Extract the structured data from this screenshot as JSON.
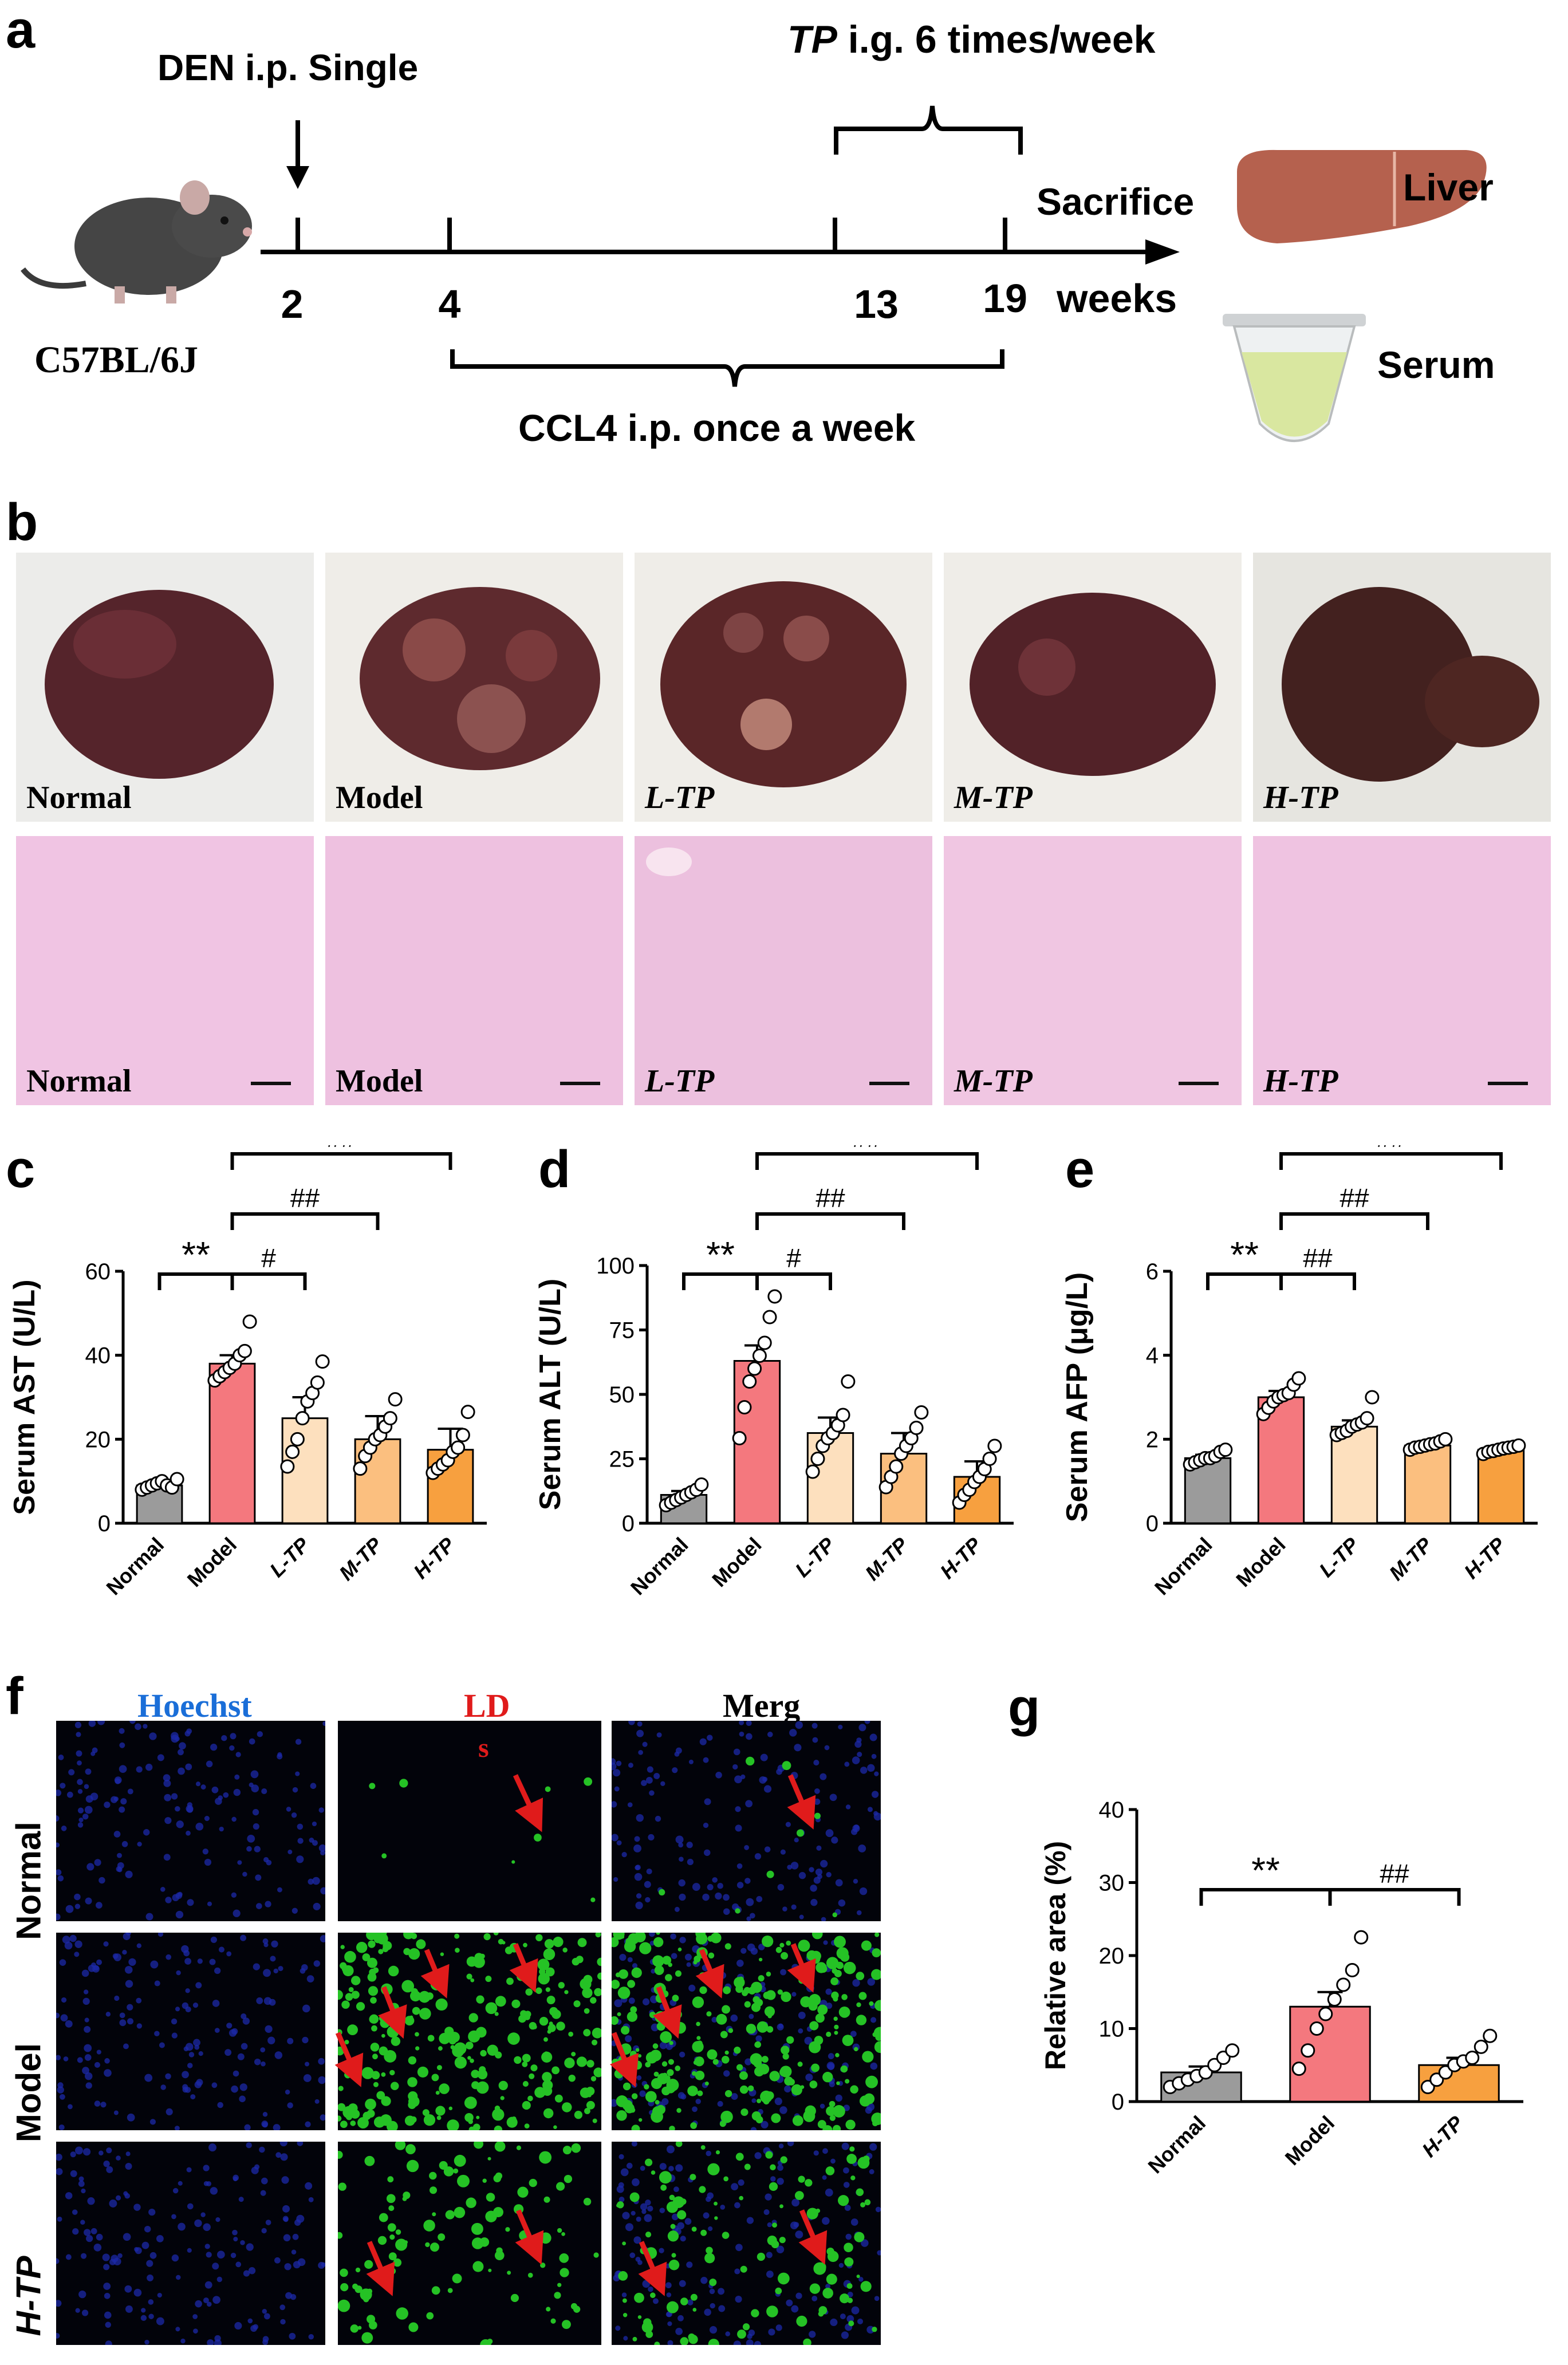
{
  "panels": {
    "a": "a",
    "b": "b",
    "c": "c",
    "d": "d",
    "e": "e",
    "f": "f",
    "g": "g"
  },
  "timeline": {
    "den": "DEN i.p. Single",
    "tp_word": "TP",
    "tp_rest": " i.g. 6 times/week",
    "ccl4": "CCL4 i.p. once a week",
    "sacrifice": "Sacrifice",
    "weeks": "weeks",
    "mouse_label": "C57BL/6J",
    "liver": "Liver",
    "serum": "Serum",
    "ticks": [
      "2",
      "4",
      "13",
      "19"
    ]
  },
  "gross_photos": [
    "Normal",
    "Model",
    "L-TP",
    "M-TP",
    "H-TP"
  ],
  "he_images": [
    "Normal",
    "Model",
    "L-TP",
    "M-TP",
    "H-TP"
  ],
  "colors": {
    "normal": "#9b9b9b",
    "model": "#f4787e",
    "ltp": "#fde0be",
    "mtp": "#fbbf7f",
    "htp": "#f7a03f"
  },
  "chart_data": [
    {
      "type": "bar",
      "panel": "c",
      "categories": [
        "Normal",
        "Model",
        "L-TP",
        "M-TP",
        "H-TP"
      ],
      "values": [
        9,
        38,
        25,
        20,
        17.5
      ],
      "errors": [
        1,
        2,
        5,
        5.5,
        5
      ],
      "points": [
        [
          8,
          8.5,
          9,
          9.5,
          10,
          9,
          8.5,
          10.5
        ],
        [
          34,
          35,
          36,
          37,
          38,
          40,
          41,
          48
        ],
        [
          13.5,
          17,
          20,
          25,
          29,
          31,
          33.5,
          38.5
        ],
        [
          13,
          16,
          18,
          20,
          21,
          23,
          25,
          29.5
        ],
        [
          12,
          13,
          14,
          15,
          17,
          18,
          21,
          26.5
        ]
      ],
      "ylabel": "Serum AST (U/L)",
      "ylim": [
        0,
        60
      ],
      "yticks": [
        0,
        20,
        40,
        60
      ],
      "significance": [
        {
          "from": 0,
          "to": 1,
          "text": "**"
        },
        {
          "from": 1,
          "to": 2,
          "text": "#"
        },
        {
          "from": 1,
          "to": 3,
          "text": "##"
        },
        {
          "from": 1,
          "to": 4,
          "text": "##"
        }
      ]
    },
    {
      "type": "bar",
      "panel": "d",
      "categories": [
        "Normal",
        "Model",
        "L-TP",
        "M-TP",
        "H-TP"
      ],
      "values": [
        11,
        63,
        35,
        27,
        18
      ],
      "errors": [
        1.5,
        6,
        6,
        8,
        6
      ],
      "points": [
        [
          7,
          8,
          9,
          10,
          11,
          12,
          13,
          15
        ],
        [
          33,
          45,
          55,
          60,
          65,
          70,
          80,
          88
        ],
        [
          20,
          25,
          30,
          33,
          35,
          38,
          42,
          55
        ],
        [
          14,
          18,
          22,
          27,
          30,
          33,
          37,
          43
        ],
        [
          8,
          11,
          13,
          16,
          18,
          21,
          25,
          30
        ]
      ],
      "ylabel": "Serum ALT (U/L)",
      "ylim": [
        0,
        100
      ],
      "yticks": [
        0,
        25,
        50,
        75,
        100
      ],
      "significance": [
        {
          "from": 0,
          "to": 1,
          "text": "**"
        },
        {
          "from": 1,
          "to": 2,
          "text": "#"
        },
        {
          "from": 1,
          "to": 3,
          "text": "##"
        },
        {
          "from": 1,
          "to": 4,
          "text": "##"
        }
      ]
    },
    {
      "type": "bar",
      "panel": "e",
      "categories": [
        "Normal",
        "Model",
        "L-TP",
        "M-TP",
        "H-TP"
      ],
      "values": [
        1.55,
        3.0,
        2.3,
        1.85,
        1.75
      ],
      "errors": [
        0.08,
        0.15,
        0.15,
        0.06,
        0.05
      ],
      "points": [
        [
          1.4,
          1.45,
          1.5,
          1.55,
          1.55,
          1.6,
          1.7,
          1.75
        ],
        [
          2.6,
          2.75,
          2.9,
          3.0,
          3.05,
          3.1,
          3.3,
          3.45
        ],
        [
          2.1,
          2.15,
          2.2,
          2.3,
          2.35,
          2.4,
          2.5,
          3.0
        ],
        [
          1.75,
          1.8,
          1.82,
          1.85,
          1.88,
          1.9,
          1.95,
          2.0
        ],
        [
          1.65,
          1.7,
          1.72,
          1.75,
          1.78,
          1.8,
          1.82,
          1.85
        ]
      ],
      "ylabel": "Serum AFP (μg/L)",
      "ylim": [
        0,
        6
      ],
      "yticks": [
        0,
        2,
        4,
        6
      ],
      "significance": [
        {
          "from": 0,
          "to": 1,
          "text": "**"
        },
        {
          "from": 1,
          "to": 2,
          "text": "##"
        },
        {
          "from": 1,
          "to": 3,
          "text": "##"
        },
        {
          "from": 1,
          "to": 4,
          "text": "##"
        }
      ]
    },
    {
      "type": "bar",
      "panel": "g",
      "categories": [
        "Normal",
        "Model",
        "H-TP"
      ],
      "values": [
        4,
        13,
        5
      ],
      "errors": [
        0.8,
        2,
        1
      ],
      "points": [
        [
          2,
          2.5,
          3,
          3.5,
          4,
          5,
          6,
          7
        ],
        [
          4.5,
          7,
          10,
          12,
          14,
          16,
          18,
          22.5
        ],
        [
          2,
          3,
          4,
          5,
          5.5,
          6,
          7.5,
          9
        ]
      ],
      "ylabel": "Relative area (%)",
      "ylim": [
        0,
        40
      ],
      "yticks": [
        0,
        10,
        20,
        30,
        40
      ],
      "significance": [
        {
          "from": 0,
          "to": 1,
          "text": "**"
        },
        {
          "from": 1,
          "to": 2,
          "text": "##"
        }
      ]
    }
  ],
  "fluorescence": {
    "columns": [
      "Hoechst",
      "LD",
      "Merg"
    ],
    "rows": [
      "Normal",
      "Model",
      "H-TP"
    ],
    "ld_note": "s"
  }
}
